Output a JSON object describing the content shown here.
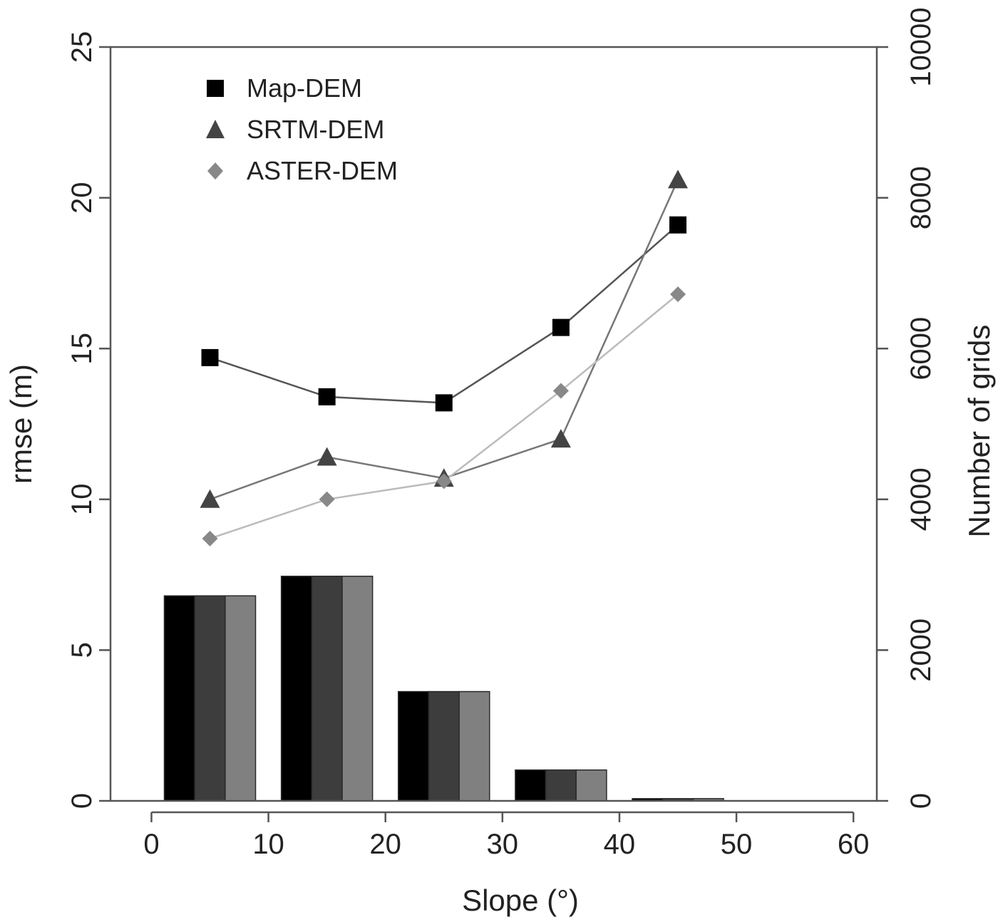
{
  "chart_data": {
    "type": "bar+line",
    "xlabel": "Slope (°)",
    "ylabel": "rmse (m)",
    "y2label": "Number of grids",
    "xlim": [
      -3.5,
      62
    ],
    "ylim": [
      0,
      25
    ],
    "y2lim": [
      0,
      10000
    ],
    "x_ticks": [
      "0",
      "10",
      "20",
      "30",
      "40",
      "50",
      "60"
    ],
    "y_ticks": [
      "0",
      "5",
      "10",
      "15",
      "20",
      "25"
    ],
    "y2_ticks": [
      "0",
      "2000",
      "4000",
      "6000",
      "8000",
      "10000"
    ],
    "legend": {
      "placement": "top-left"
    },
    "bars": {
      "axis": "right",
      "bin_centers": [
        5,
        15,
        25,
        35,
        45
      ],
      "series": [
        {
          "name": "Map-DEM",
          "color": "#000000",
          "values": [
            2720,
            2980,
            1450,
            410,
            30
          ]
        },
        {
          "name": "SRTM-DEM",
          "color": "#3d3d3d",
          "values": [
            2720,
            2980,
            1450,
            410,
            30
          ]
        },
        {
          "name": "ASTER-DEM",
          "color": "#808080",
          "values": [
            2720,
            2980,
            1450,
            410,
            30
          ]
        }
      ]
    },
    "lines": {
      "axis": "left",
      "x": [
        5,
        15,
        25,
        35,
        45
      ],
      "series": [
        {
          "name": "Map-DEM",
          "marker": "square",
          "color": "#000000",
          "line_color": "#555555",
          "values": [
            14.7,
            13.4,
            13.2,
            15.7,
            19.1
          ]
        },
        {
          "name": "SRTM-DEM",
          "marker": "triangle",
          "color": "#444444",
          "line_color": "#777777",
          "values": [
            10.0,
            11.4,
            10.7,
            12.0,
            20.6
          ]
        },
        {
          "name": "ASTER-DEM",
          "marker": "diamond",
          "color": "#888888",
          "line_color": "#bbbbbb",
          "values": [
            8.7,
            10.0,
            10.6,
            13.6,
            16.8
          ]
        }
      ]
    }
  }
}
